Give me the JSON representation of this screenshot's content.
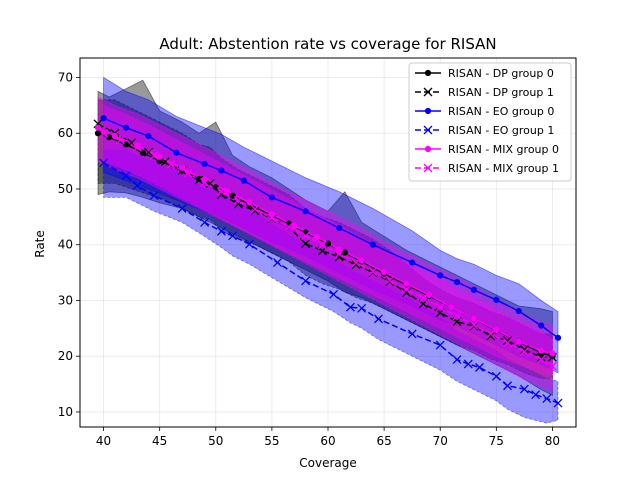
{
  "chart_data": {
    "type": "line",
    "title": "Adult: Abstention rate vs coverage for RISAN",
    "xlabel": "Coverage",
    "ylabel": "Rate",
    "xlim": [
      37.9,
      82.1
    ],
    "ylim": [
      7.3,
      73.5
    ],
    "xticks": [
      40,
      45,
      50,
      55,
      60,
      65,
      70,
      75,
      80
    ],
    "yticks": [
      10,
      20,
      30,
      40,
      50,
      60,
      70
    ],
    "grid": true,
    "legend_position": "top-right",
    "series": [
      {
        "name": "RISAN - DP group 0",
        "color": "#000000",
        "linestyle": "solid",
        "marker": "dot",
        "band_color": "#000000",
        "x": [
          39.5,
          40.5,
          42.0,
          43.5,
          45.0,
          47.0,
          48.5,
          50.0,
          51.5,
          53.0,
          55.0,
          56.5,
          58.0,
          60.0,
          61.5,
          63.0,
          65.0,
          67.0,
          69.0,
          71.0,
          73.0,
          75.0,
          77.0,
          79.0,
          80.0
        ],
        "y": [
          60.0,
          59.3,
          58.0,
          56.5,
          55.0,
          53.3,
          51.8,
          50.3,
          48.8,
          47.2,
          45.3,
          43.8,
          42.2,
          40.2,
          38.6,
          37.0,
          34.8,
          32.8,
          30.8,
          28.8,
          26.8,
          24.6,
          22.6,
          20.6,
          20.0
        ],
        "lower": [
          49.0,
          49.5,
          49.3,
          48.5,
          47.5,
          46.5,
          45.0,
          43.5,
          42.0,
          40.5,
          38.5,
          37.0,
          35.5,
          33.5,
          31.5,
          30.5,
          28.5,
          26.5,
          24.5,
          22.5,
          20.5,
          18.5,
          16.5,
          14.0,
          13.0
        ],
        "upper": [
          67.5,
          66.5,
          68.0,
          69.5,
          64.0,
          62.0,
          60.0,
          62.0,
          56.0,
          54.0,
          52.0,
          50.0,
          48.0,
          46.0,
          49.5,
          44.0,
          41.5,
          39.0,
          37.0,
          35.0,
          33.0,
          31.0,
          29.0,
          28.5,
          28.0
        ]
      },
      {
        "name": "RISAN - DP group 1",
        "color": "#000000",
        "linestyle": "dashed",
        "marker": "x",
        "band_color": "#000000",
        "x": [
          39.5,
          41.0,
          42.5,
          44.0,
          45.5,
          47.0,
          48.5,
          49.5,
          50.5,
          52.0,
          53.5,
          55.0,
          56.5,
          58.0,
          59.5,
          61.0,
          62.5,
          64.0,
          65.5,
          67.0,
          68.5,
          70.0,
          71.5,
          73.0,
          74.5,
          76.0,
          77.5,
          79.0,
          80.0
        ],
        "y": [
          61.7,
          60.0,
          58.3,
          56.6,
          54.9,
          53.3,
          51.6,
          51.0,
          49.0,
          47.3,
          46.1,
          44.7,
          43.2,
          40.2,
          38.9,
          37.8,
          36.4,
          35.0,
          33.4,
          31.4,
          29.4,
          27.8,
          26.2,
          25.4,
          23.6,
          22.8,
          21.2,
          19.8,
          19.8
        ],
        "lower": [
          51.0,
          51.0,
          50.0,
          49.0,
          48.0,
          46.5,
          45.0,
          44.5,
          42.5,
          41.0,
          40.0,
          38.5,
          37.0,
          34.5,
          33.0,
          32.0,
          30.5,
          29.5,
          28.0,
          26.5,
          25.0,
          23.5,
          22.0,
          21.0,
          19.5,
          18.5,
          17.0,
          16.0,
          16.0
        ],
        "upper": [
          66.0,
          66.0,
          64.5,
          63.0,
          61.5,
          60.0,
          58.0,
          57.5,
          55.5,
          53.5,
          52.0,
          50.5,
          49.0,
          46.5,
          45.0,
          44.0,
          42.5,
          41.0,
          39.0,
          36.5,
          34.0,
          32.0,
          30.5,
          29.5,
          28.0,
          27.0,
          25.5,
          24.0,
          24.0
        ]
      },
      {
        "name": "RISAN - EO group 0",
        "color": "#0000ff",
        "linestyle": "solid",
        "marker": "dot",
        "band_color": "#0000ff",
        "x": [
          40.0,
          42.0,
          44.0,
          46.5,
          49.0,
          50.5,
          52.5,
          55.0,
          58.0,
          61.0,
          64.0,
          67.5,
          70.0,
          71.5,
          73.0,
          75.0,
          77.0,
          79.0,
          80.5
        ],
        "y": [
          62.7,
          61.0,
          59.5,
          56.5,
          54.5,
          53.3,
          51.5,
          48.5,
          46.0,
          43.0,
          40.0,
          36.8,
          34.5,
          33.3,
          31.9,
          30.1,
          28.1,
          25.5,
          23.3
        ],
        "lower": [
          53.0,
          51.5,
          50.0,
          48.0,
          46.0,
          44.8,
          43.0,
          40.5,
          38.0,
          35.0,
          32.0,
          29.0,
          26.5,
          25.5,
          24.0,
          22.0,
          20.0,
          18.5,
          17.0
        ],
        "upper": [
          70.0,
          67.5,
          66.0,
          63.0,
          61.0,
          59.8,
          57.5,
          55.0,
          52.0,
          49.5,
          46.5,
          42.5,
          39.0,
          37.5,
          36.5,
          34.5,
          33.0,
          30.0,
          28.0
        ]
      },
      {
        "name": "RISAN - EO group 1",
        "color": "#0000ff",
        "linestyle": "dashed",
        "marker": "x",
        "band_color": "#0000ff",
        "x": [
          40.0,
          42.0,
          43.0,
          44.5,
          47.0,
          49.0,
          50.5,
          51.5,
          53.0,
          55.5,
          58.0,
          60.5,
          62.0,
          63.0,
          64.5,
          67.5,
          70.0,
          71.5,
          72.5,
          73.5,
          75.0,
          76.0,
          77.5,
          78.5,
          79.5,
          80.5
        ],
        "y": [
          54.7,
          52.4,
          50.6,
          48.8,
          46.5,
          44.0,
          42.4,
          41.6,
          40.1,
          36.8,
          33.5,
          31.1,
          28.8,
          28.6,
          26.7,
          24.0,
          22.0,
          19.4,
          18.6,
          18.0,
          16.4,
          14.7,
          14.1,
          13.1,
          12.4,
          11.6
        ],
        "lower": [
          48.5,
          48.5,
          47.5,
          46.0,
          44.0,
          41.5,
          39.5,
          38.0,
          36.5,
          33.5,
          30.5,
          28.0,
          26.0,
          25.0,
          23.0,
          20.0,
          17.5,
          15.5,
          14.5,
          13.5,
          12.0,
          10.5,
          9.0,
          8.5,
          8.0,
          8.5
        ],
        "upper": [
          57.0,
          57.0,
          56.0,
          55.0,
          53.0,
          51.0,
          49.0,
          48.0,
          46.5,
          43.0,
          40.0,
          37.5,
          35.5,
          34.5,
          33.0,
          30.0,
          27.0,
          24.5,
          23.5,
          22.5,
          21.0,
          19.5,
          18.0,
          17.0,
          16.0,
          15.5
        ]
      },
      {
        "name": "RISAN - MIX group 0",
        "color": "#ff00ff",
        "linestyle": "solid",
        "marker": "dot",
        "band_color": "#ff00ff",
        "x": [
          39.5,
          41.0,
          43.0,
          45.0,
          47.0,
          49.0,
          51.0,
          53.0,
          55.0,
          57.0,
          59.0,
          61.0,
          63.0,
          65.0,
          67.0,
          69.0,
          71.0,
          73.0,
          75.0,
          77.0,
          79.0,
          80.0
        ],
        "y": [
          61.0,
          59.5,
          57.8,
          55.8,
          53.8,
          51.7,
          49.6,
          47.6,
          45.5,
          43.4,
          41.4,
          39.2,
          37.2,
          35.1,
          33.0,
          31.0,
          28.8,
          26.8,
          24.7,
          22.6,
          21.0,
          20.5
        ],
        "lower": [
          55.0,
          53.5,
          52.0,
          50.0,
          48.0,
          46.0,
          44.0,
          42.0,
          40.0,
          38.0,
          36.0,
          34.0,
          32.0,
          30.0,
          28.0,
          26.0,
          24.0,
          22.0,
          20.0,
          18.5,
          17.0,
          16.5
        ],
        "upper": [
          66.5,
          65.0,
          63.5,
          61.5,
          59.5,
          57.5,
          55.5,
          53.5,
          51.0,
          49.0,
          47.0,
          45.0,
          43.0,
          40.5,
          38.5,
          36.5,
          34.5,
          32.5,
          30.0,
          28.0,
          26.0,
          25.5
        ]
      },
      {
        "name": "RISAN - MIX group 1",
        "color": "#ff00ff",
        "linestyle": "dashed",
        "marker": "x",
        "band_color": "#ff00ff",
        "x": [
          40.0,
          41.5,
          43.0,
          44.5,
          46.0,
          47.5,
          49.0,
          50.5,
          52.0,
          53.5,
          55.0,
          56.5,
          58.0,
          59.5,
          61.0,
          62.5,
          64.0,
          65.5,
          67.0,
          68.5,
          70.0,
          71.5,
          73.0,
          74.5,
          76.0,
          77.5,
          79.0,
          80.0
        ],
        "y": [
          60.0,
          58.8,
          57.5,
          56.0,
          54.4,
          52.8,
          51.2,
          49.6,
          48.0,
          46.4,
          44.8,
          43.2,
          41.6,
          40.0,
          38.4,
          36.8,
          35.2,
          33.6,
          32.0,
          30.4,
          28.8,
          27.2,
          25.6,
          24.0,
          22.4,
          20.8,
          19.4,
          18.2
        ],
        "lower": [
          55.0,
          53.8,
          52.5,
          51.0,
          49.4,
          47.8,
          46.2,
          44.6,
          43.0,
          41.4,
          39.8,
          38.2,
          36.6,
          35.0,
          33.4,
          31.8,
          30.2,
          28.6,
          27.0,
          25.4,
          23.8,
          22.2,
          20.6,
          19.0,
          17.4,
          15.8,
          14.5,
          13.5
        ],
        "upper": [
          65.0,
          63.8,
          62.5,
          61.0,
          59.4,
          57.8,
          56.2,
          54.6,
          53.0,
          51.4,
          49.8,
          48.2,
          46.6,
          45.0,
          43.4,
          41.8,
          40.2,
          38.6,
          37.0,
          35.4,
          33.8,
          32.2,
          30.6,
          29.0,
          27.4,
          25.8,
          24.4,
          23.0
        ]
      }
    ]
  }
}
